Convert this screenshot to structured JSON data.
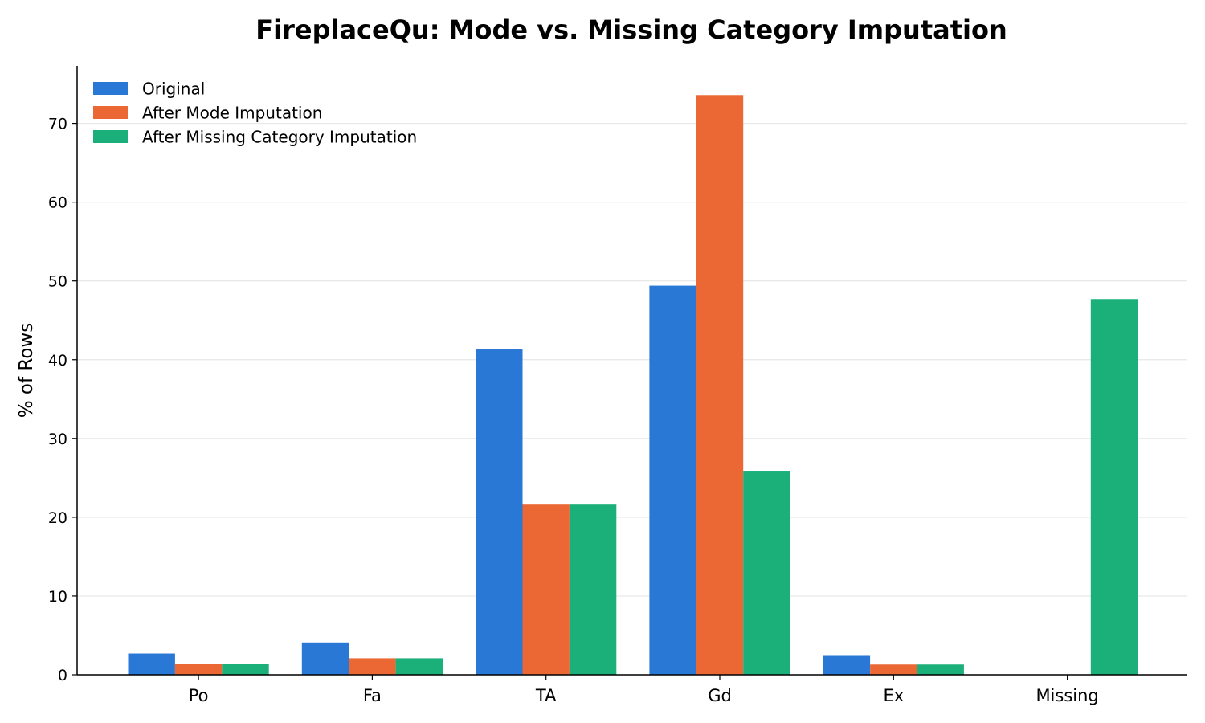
{
  "chart_data": {
    "type": "bar",
    "title": "FireplaceQu: Mode vs. Missing Category Imputation",
    "xlabel": "",
    "ylabel": "% of Rows",
    "categories": [
      "Po",
      "Fa",
      "TA",
      "Gd",
      "Ex",
      "Missing"
    ],
    "series": [
      {
        "name": "Original",
        "color": "#2a78d6",
        "values": [
          2.7,
          4.1,
          41.3,
          49.4,
          2.5,
          0
        ]
      },
      {
        "name": "After Mode Imputation",
        "color": "#eb6834",
        "values": [
          1.4,
          2.1,
          21.6,
          73.6,
          1.3,
          0
        ]
      },
      {
        "name": "After Missing Category Imputation",
        "color": "#1baf7a",
        "values": [
          1.4,
          2.1,
          21.6,
          25.9,
          1.3,
          47.7
        ]
      }
    ],
    "ylim": [
      0,
      77.3
    ],
    "yticks": [
      0,
      10,
      20,
      30,
      40,
      50,
      60,
      70
    ],
    "grid": "y",
    "legend_position": "top-left"
  }
}
